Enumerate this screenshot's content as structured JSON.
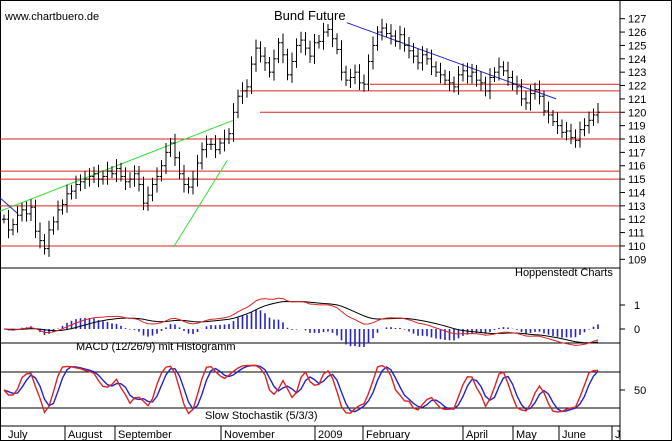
{
  "chart_data": [
    {
      "type": "candlestick",
      "panel": "price",
      "title": "Bund Future",
      "watermark": "www.chartbuero.de",
      "source_label": "Hoppenstedt Charts",
      "x_labels": [
        "July",
        "August",
        "September",
        "November",
        "2009",
        "February",
        "April",
        "May",
        "June",
        "J"
      ],
      "y_ticks": [
        109,
        110,
        111,
        112,
        113,
        114,
        115,
        116,
        117,
        118,
        119,
        120,
        121,
        122,
        123,
        124,
        125,
        126,
        127
      ],
      "ylim": [
        108.5,
        127.8
      ],
      "grid": false,
      "color_horizontal_lines": "#dd2222",
      "color_channel": "#33dd33",
      "color_trendline": "#2222cc",
      "horizontal_lines": [
        110,
        113,
        115,
        115.6,
        118,
        120,
        121.6,
        122.1
      ],
      "close_series": [
        112,
        111.2,
        111.6,
        112.3,
        112.7,
        112.4,
        112.9,
        111.1,
        110.4,
        109.8,
        111.2,
        111.8,
        112.7,
        113.1,
        113.9,
        114.1,
        114.6,
        114.8,
        115.0,
        115.2,
        115.4,
        115.0,
        115.2,
        115.6,
        115.4,
        115.8,
        115.2,
        114.8,
        115.0,
        115.4,
        114.6,
        113.2,
        113.8,
        114.6,
        115.2,
        116.0,
        117.0,
        117.7,
        116.6,
        115.4,
        114.6,
        114.4,
        115.0,
        116.2,
        117.2,
        117.6,
        117.6,
        117.2,
        117.7,
        118.0,
        118.4,
        120.0,
        121.2,
        121.6,
        121.9,
        123.6,
        124.8,
        124.2,
        123.7,
        123.0,
        124.0,
        125.2,
        124.3,
        122.8,
        123.8,
        125.0,
        125.4,
        124.8,
        124.2,
        125.2,
        125.3,
        126.0,
        126.2,
        125.5,
        124.7,
        123.0,
        122.4,
        122.6,
        123.0,
        122.2,
        122.1,
        123.8,
        125.0,
        126.0,
        126.3,
        125.9,
        125.7,
        125.3,
        125.8,
        125.0,
        124.6,
        124.2,
        123.7,
        124.3,
        124.0,
        123.4,
        123.0,
        122.8,
        122.4,
        122.2,
        121.9,
        122.8,
        123.1,
        122.7,
        123.0,
        122.4,
        122.2,
        121.6,
        122.6,
        123.0,
        123.4,
        123.1,
        122.6,
        122.1,
        121.9,
        121.0,
        120.7,
        121.4,
        121.7,
        121.2,
        120.1,
        119.8,
        119.3,
        119.0,
        118.5,
        118.6,
        118.1,
        117.9,
        118.7,
        119.0,
        119.4,
        119.8,
        120.0
      ],
      "lower_channel": {
        "from": [
          0.29,
          109.9
        ],
        "to": [
          0.38,
          116.4
        ]
      },
      "upper_channel": {
        "from": [
          0.0,
          112.6
        ],
        "to": [
          0.39,
          119.4
        ]
      },
      "trendline": {
        "from": [
          0.58,
          126.7
        ],
        "to": [
          0.93,
          121.0
        ]
      }
    },
    {
      "type": "line",
      "panel": "macd",
      "label": "MACD (12/26/9) mit Histogramm",
      "y_ticks": [
        1,
        0
      ],
      "series": [
        {
          "role": "macd",
          "color": "#dd2222"
        },
        {
          "role": "signal",
          "color": "#000000"
        },
        {
          "role": "histogram",
          "color": "#2222cc"
        }
      ]
    },
    {
      "type": "line",
      "panel": "stochastic",
      "label": "Slow Stochastik (5/3/3)",
      "y_ticks": [
        50
      ],
      "levels": [
        20,
        80
      ],
      "series": [
        {
          "role": "%K",
          "color": "#dd2222"
        },
        {
          "role": "%D",
          "color": "#2222cc"
        }
      ]
    }
  ]
}
